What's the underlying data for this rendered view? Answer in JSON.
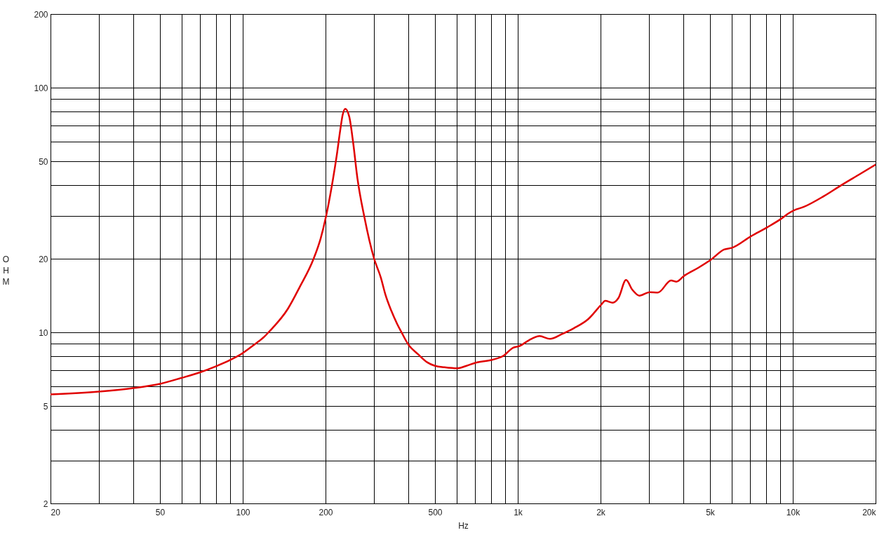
{
  "chart_data": {
    "type": "line",
    "xlabel": "Hz",
    "ylabel": "OHM",
    "x": [
      20,
      30,
      40,
      50,
      60,
      70,
      80,
      90,
      100,
      110,
      120,
      124,
      146,
      161,
      181,
      192,
      201,
      211,
      220,
      226,
      231,
      236,
      244,
      252,
      261,
      277,
      300,
      318,
      330,
      347,
      364,
      378,
      401,
      433,
      468,
      500,
      541,
      602,
      651,
      704,
      806,
      888,
      960,
      1018,
      1100,
      1200,
      1310,
      1444,
      1600,
      1805,
      2008,
      2080,
      2213,
      2323,
      2476,
      2610,
      2767,
      3020,
      3233,
      3610,
      3776,
      4027,
      4540,
      5053,
      5623,
      6018,
      7067,
      8082,
      9101,
      9589,
      10084,
      10985,
      12950,
      14980,
      17330,
      20000
    ],
    "series": [
      {
        "color": "#e00000",
        "values": [
          5.58,
          5.73,
          5.92,
          6.16,
          6.52,
          6.87,
          7.27,
          7.71,
          8.23,
          8.9,
          9.62,
          10.0,
          12.5,
          15.3,
          20.0,
          24.2,
          29.9,
          39.9,
          53.5,
          66.6,
          77.7,
          82,
          76,
          59.7,
          42.9,
          29.5,
          20.1,
          16.7,
          14.3,
          12.25,
          10.85,
          10.0,
          8.88,
          8.16,
          7.55,
          7.3,
          7.2,
          7.13,
          7.3,
          7.52,
          7.72,
          8.03,
          8.65,
          8.81,
          9.3,
          9.66,
          9.41,
          9.83,
          10.4,
          11.34,
          12.94,
          13.46,
          13.22,
          13.82,
          16.37,
          14.93,
          14.13,
          14.6,
          14.55,
          16.3,
          16.11,
          17.03,
          18.39,
          19.87,
          21.8,
          22.17,
          24.76,
          26.9,
          29.2,
          30.5,
          31.5,
          32.6,
          36.0,
          39.9,
          44.0,
          48.5
        ]
      }
    ],
    "xlim": [
      20,
      20000
    ],
    "ylim": [
      2,
      200
    ],
    "xticks": [
      20,
      {
        "value": 30,
        "label": null
      },
      {
        "value": 40,
        "label": null
      },
      50,
      {
        "value": 60,
        "label": null
      },
      {
        "value": 70,
        "label": null
      },
      {
        "value": 80,
        "label": null
      },
      {
        "value": 90,
        "label": null
      },
      100,
      200,
      {
        "value": 300,
        "label": null
      },
      {
        "value": 400,
        "label": null
      },
      500,
      {
        "value": 600,
        "label": null
      },
      {
        "value": 700,
        "label": null
      },
      {
        "value": 800,
        "label": null
      },
      {
        "value": 900,
        "label": null
      },
      {
        "value": 1000,
        "label": "1k"
      },
      {
        "value": 2000,
        "label": "2k"
      },
      {
        "value": 3000,
        "label": null
      },
      {
        "value": 4000,
        "label": null
      },
      {
        "value": 5000,
        "label": "5k"
      },
      {
        "value": 6000,
        "label": null
      },
      {
        "value": 7000,
        "label": null
      },
      {
        "value": 8000,
        "label": null
      },
      {
        "value": 9000,
        "label": null
      },
      {
        "value": 10000,
        "label": "10k"
      },
      {
        "value": 20000,
        "label": "20k"
      }
    ],
    "yticks": [
      2,
      {
        "value": 3,
        "label": null
      },
      {
        "value": 4,
        "label": null
      },
      5,
      {
        "value": 6,
        "label": null
      },
      {
        "value": 7,
        "label": null
      },
      {
        "value": 8,
        "label": null
      },
      {
        "value": 9,
        "label": null
      },
      10,
      20,
      {
        "value": 30,
        "label": null
      },
      {
        "value": 40,
        "label": null
      },
      50,
      {
        "value": 60,
        "label": null
      },
      {
        "value": 70,
        "label": null
      },
      {
        "value": 80,
        "label": null
      },
      {
        "value": 90,
        "label": null
      },
      100,
      200
    ],
    "log": "xy",
    "grid": true,
    "line_style": "solid"
  }
}
